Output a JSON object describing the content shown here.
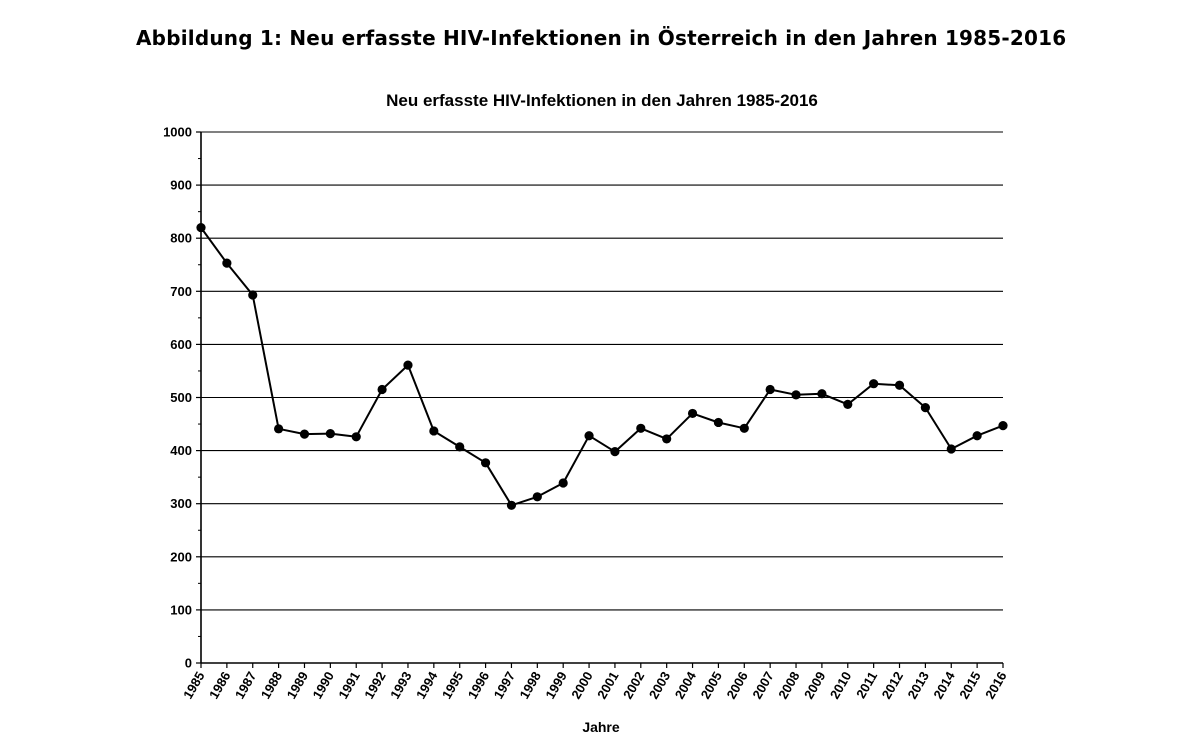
{
  "figure_caption": "Abbildung 1: Neu erfasste HIV-Infektionen in Österreich in den Jahren 1985-2016",
  "chart_data": {
    "type": "line",
    "title": "Neu erfasste HIV-Infektionen in den  Jahren 1985-2016",
    "xlabel": "Jahre",
    "ylabel": "",
    "ylim": [
      0,
      1000
    ],
    "yticks": [
      0,
      100,
      200,
      300,
      400,
      500,
      600,
      700,
      800,
      900,
      1000
    ],
    "grid": true,
    "legend": "none",
    "categories": [
      "1985",
      "1986",
      "1987",
      "1988",
      "1989",
      "1990",
      "1991",
      "1992",
      "1993",
      "1994",
      "1995",
      "1996",
      "1997",
      "1998",
      "1999",
      "2000",
      "2001",
      "2002",
      "2003",
      "2004",
      "2005",
      "2006",
      "2007",
      "2008",
      "2009",
      "2010",
      "2011",
      "2012",
      "2013",
      "2014",
      "2015",
      "2016"
    ],
    "series": [
      {
        "values": [
          820,
          753,
          693,
          441,
          431,
          432,
          426,
          515,
          561,
          437,
          407,
          377,
          297,
          313,
          339,
          428,
          398,
          442,
          422,
          470,
          453,
          442,
          515,
          505,
          507,
          487,
          526,
          523,
          481,
          403,
          428,
          447
        ],
        "color": "#000000"
      }
    ]
  }
}
